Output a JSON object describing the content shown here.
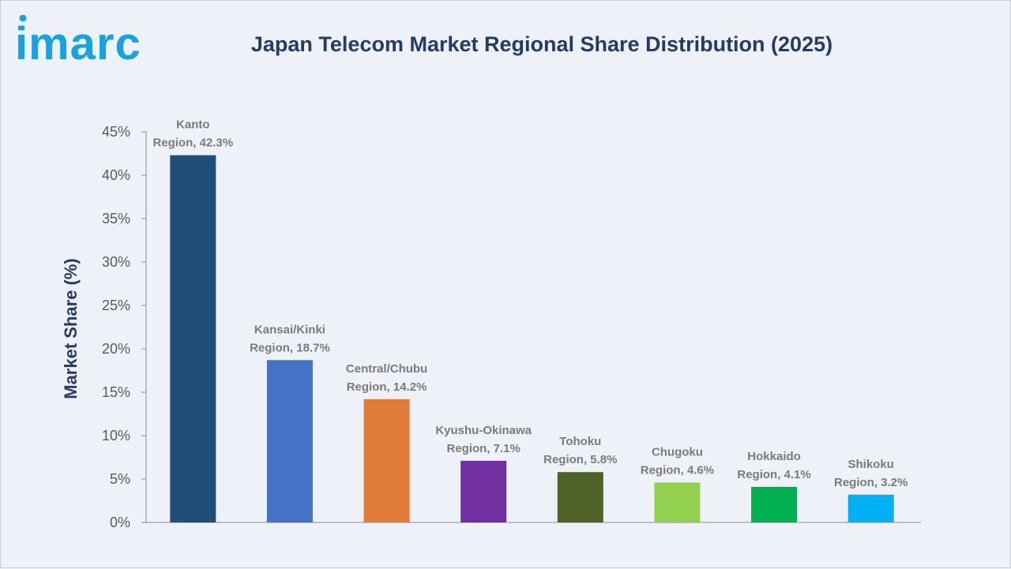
{
  "brand": {
    "logo_text": "imarc",
    "logo_color": "#1aa2e0"
  },
  "chart_data": {
    "type": "bar",
    "title": "Japan Telecom Market Regional Share Distribution (2025)",
    "xlabel": "",
    "ylabel": "Market Share (%)",
    "ylim": [
      0,
      45
    ],
    "yticks": [
      0,
      5,
      10,
      15,
      20,
      25,
      30,
      35,
      40,
      45
    ],
    "ytick_labels": [
      "0%",
      "5%",
      "10%",
      "15%",
      "20%",
      "25%",
      "30%",
      "35%",
      "40%",
      "45%"
    ],
    "grid": false,
    "categories": [
      "Kanto",
      "Kansai/Kinki",
      "Central/Chubu",
      "Kyushu-Okinawa",
      "Tohoku",
      "Chugoku",
      "Hokkaido",
      "Shikoku"
    ],
    "values": [
      42.3,
      18.7,
      14.2,
      7.1,
      5.8,
      4.6,
      4.1,
      3.2
    ],
    "data_labels": [
      [
        "Kanto",
        "Region, 42.3%"
      ],
      [
        "Kansai/Kinki",
        "Region, 18.7%"
      ],
      [
        "Central/Chubu",
        "Region, 14.2%"
      ],
      [
        "Kyushu-Okinawa",
        "Region, 7.1%"
      ],
      [
        "Tohoku",
        "Region, 5.8%"
      ],
      [
        "Chugoku",
        "Region, 4.6%"
      ],
      [
        "Hokkaido",
        "Region, 4.1%"
      ],
      [
        "Shikoku",
        "Region, 3.2%"
      ]
    ],
    "colors": [
      "#1f4e79",
      "#4472c4",
      "#e07b39",
      "#7030a0",
      "#4f6228",
      "#92d050",
      "#00b050",
      "#00b0f0"
    ]
  }
}
